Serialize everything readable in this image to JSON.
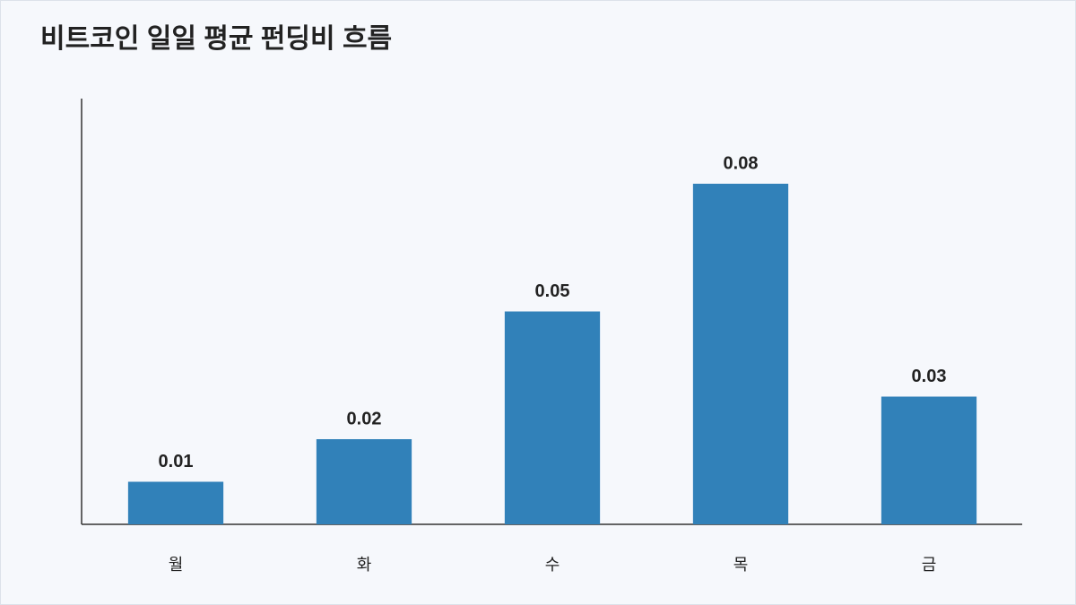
{
  "chart_data": {
    "type": "bar",
    "title": "비트코인 일일 평균 펀딩비 흐름",
    "categories": [
      "월",
      "화",
      "수",
      "목",
      "금"
    ],
    "values": [
      0.01,
      0.02,
      0.05,
      0.08,
      0.03
    ],
    "color": "#3181b9",
    "ylim": [
      0,
      0.1
    ]
  }
}
